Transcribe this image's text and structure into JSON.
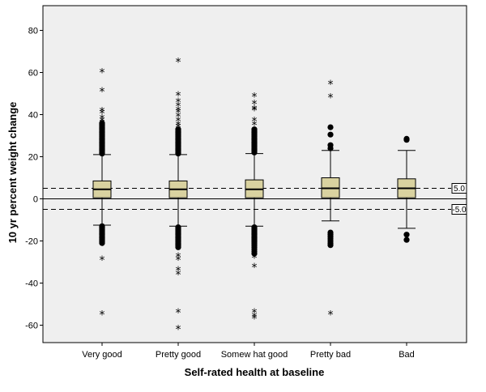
{
  "chart_data": {
    "type": "boxplot",
    "title": "",
    "xlabel": "Self-rated health at baseline",
    "ylabel": "10 yr percent weight change",
    "ylim": [
      -68,
      88
    ],
    "yticks": [
      -60,
      -40,
      -20,
      0,
      20,
      40,
      60,
      80
    ],
    "categories": [
      "Very good",
      "Pretty good",
      "Somew hat good",
      "Pretty bad",
      "Bad"
    ],
    "boxes": [
      {
        "q1": 0.5,
        "median": 4.5,
        "q3": 8.5,
        "whisker_low": -12.5,
        "whisker_high": 21.0,
        "outlier_circles": [
          21.5,
          22,
          22.5,
          23,
          23.5,
          24,
          24.5,
          25,
          25.5,
          26,
          26.5,
          27,
          27.5,
          28,
          28.5,
          29,
          29.5,
          30,
          30.5,
          31,
          31.5,
          32,
          32.5,
          33,
          33.5,
          34,
          34.5,
          35,
          35.5,
          36,
          -13,
          -13.5,
          -14,
          -14.5,
          -15,
          -15.5,
          -16,
          -16.5,
          -17,
          -17.5,
          -18,
          -18.5,
          -19,
          -19.5,
          -20,
          -20.5,
          -21
        ],
        "extreme_stars": [
          60,
          51,
          41.5,
          40.5,
          38,
          37,
          -29,
          -55
        ]
      },
      {
        "q1": 0.5,
        "median": 4.5,
        "q3": 8.5,
        "whisker_low": -13.0,
        "whisker_high": 21.0,
        "outlier_circles": [
          21.5,
          22,
          22.5,
          23,
          23.5,
          24,
          24.5,
          25,
          25.5,
          26,
          26.5,
          27,
          27.5,
          28,
          28.5,
          29,
          29.5,
          30,
          30.5,
          31,
          31.5,
          32,
          32.5,
          33,
          -13.5,
          -14,
          -14.5,
          -15,
          -15.5,
          -16,
          -16.5,
          -17,
          -17.5,
          -18,
          -18.5,
          -19,
          -19.5,
          -20,
          -20.5,
          -21,
          -21.5,
          -22,
          -22.5,
          -23
        ],
        "extreme_stars": [
          65,
          49,
          46,
          44,
          42,
          41,
          39,
          37,
          35,
          34,
          -27.5,
          -29,
          -34,
          -36,
          -54,
          -62
        ]
      },
      {
        "q1": 0.5,
        "median": 4.5,
        "q3": 9.0,
        "whisker_low": -13.0,
        "whisker_high": 21.5,
        "outlier_circles": [
          22,
          22.5,
          23,
          23.5,
          24,
          24.5,
          25,
          25.5,
          26,
          26.5,
          27,
          27.5,
          28,
          28.5,
          29,
          29.5,
          30,
          30.5,
          31,
          31.5,
          32,
          32.5,
          33,
          -13.5,
          -14,
          -14.5,
          -15,
          -15.5,
          -16,
          -16.5,
          -17,
          -17.5,
          -18,
          -18.5,
          -19,
          -19.5,
          -20,
          -20.5,
          -21,
          -22,
          -23,
          -24,
          -25,
          -26
        ],
        "extreme_stars": [
          48.5,
          45,
          42.5,
          42,
          37,
          35,
          -28,
          -32.5,
          -54,
          -56,
          -57
        ]
      },
      {
        "q1": 0.5,
        "median": 5.0,
        "q3": 10.0,
        "whisker_low": -10.5,
        "whisker_high": 23.0,
        "outlier_circles": [
          24,
          25.5,
          30.5,
          34,
          -16,
          -17,
          -18,
          -19,
          -20,
          -21,
          -22
        ],
        "extreme_stars": [
          54.5,
          48,
          -55
        ]
      },
      {
        "q1": 0.5,
        "median": 5.0,
        "q3": 9.5,
        "whisker_low": -14.0,
        "whisker_high": 23.0,
        "outlier_circles": [
          28,
          28.5,
          -17,
          -19.5
        ],
        "extreme_stars": []
      }
    ],
    "reference_lines": [
      {
        "value": 5.0,
        "label": "5.0",
        "style": "dashed"
      },
      {
        "value": -5.0,
        "label": "-5.0",
        "style": "dashed"
      },
      {
        "value": 0,
        "label": "",
        "style": "solid"
      }
    ],
    "colors": {
      "plot_background": "#efefef",
      "box_fill": "#d9d2a0",
      "box_stroke": "#000000",
      "marker": "#000000"
    }
  }
}
